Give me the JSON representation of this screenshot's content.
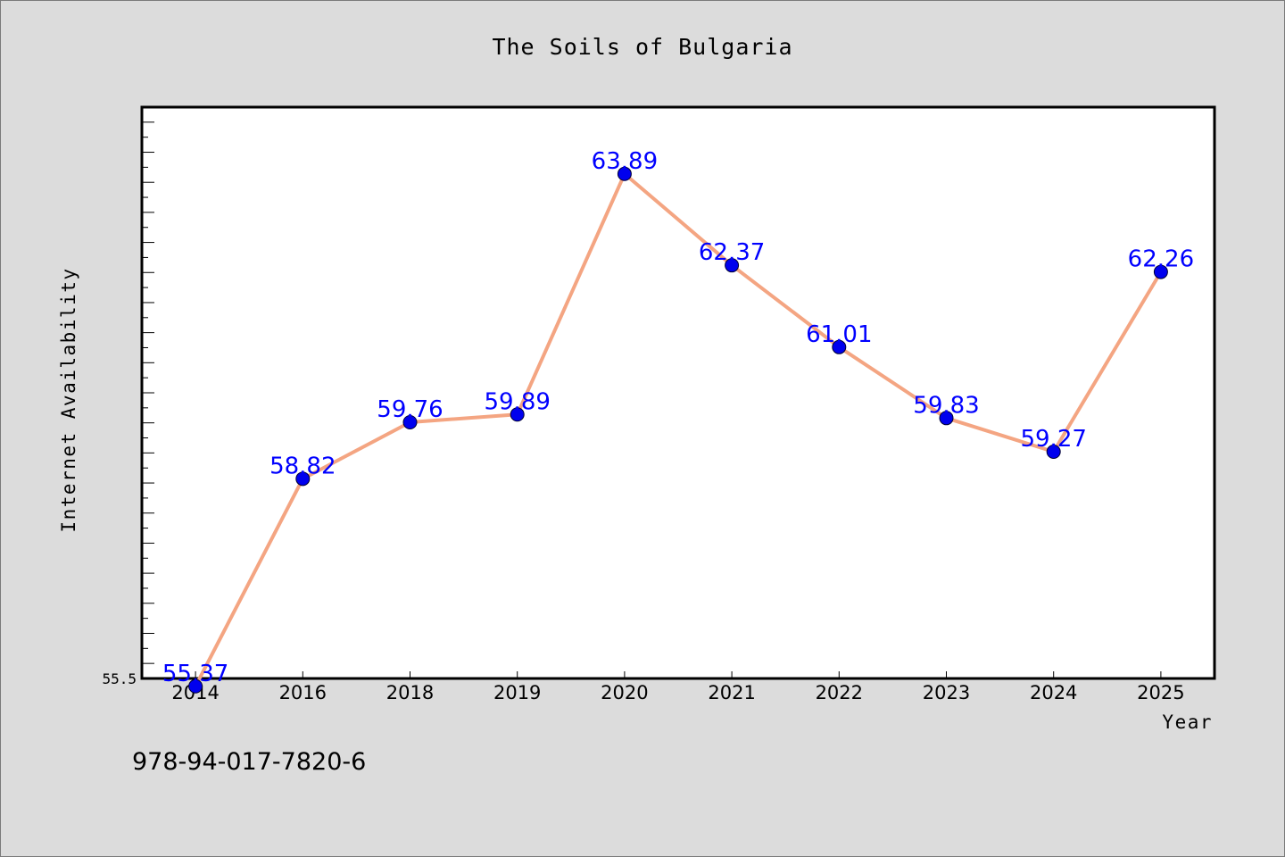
{
  "chart_data": {
    "type": "line",
    "title": "The Soils of Bulgaria",
    "xlabel": "Year",
    "ylabel": "Internet Availability",
    "categories": [
      "2014",
      "2016",
      "2018",
      "2019",
      "2020",
      "2021",
      "2022",
      "2023",
      "2024",
      "2025"
    ],
    "series": [
      {
        "values": [
          55.37,
          58.82,
          59.76,
          59.89,
          63.89,
          62.37,
          61.01,
          59.83,
          59.27,
          62.26
        ],
        "data_labels": [
          "55.37",
          "58.82",
          "59.76",
          "59.89",
          "63.89",
          "62.37",
          "61.01",
          "59.83",
          "59.27",
          "62.26"
        ]
      }
    ],
    "y_tick_labels": [
      "55.5"
    ],
    "ylim": [
      55.5,
      65.0
    ],
    "grid": false,
    "colors": {
      "line": "#f4a582",
      "marker": "#0000ee",
      "label": "#0000ff",
      "background": "#dcdcdc",
      "plot_background": "#ffffff"
    }
  },
  "footer_text": "978-94-017-7820-6"
}
